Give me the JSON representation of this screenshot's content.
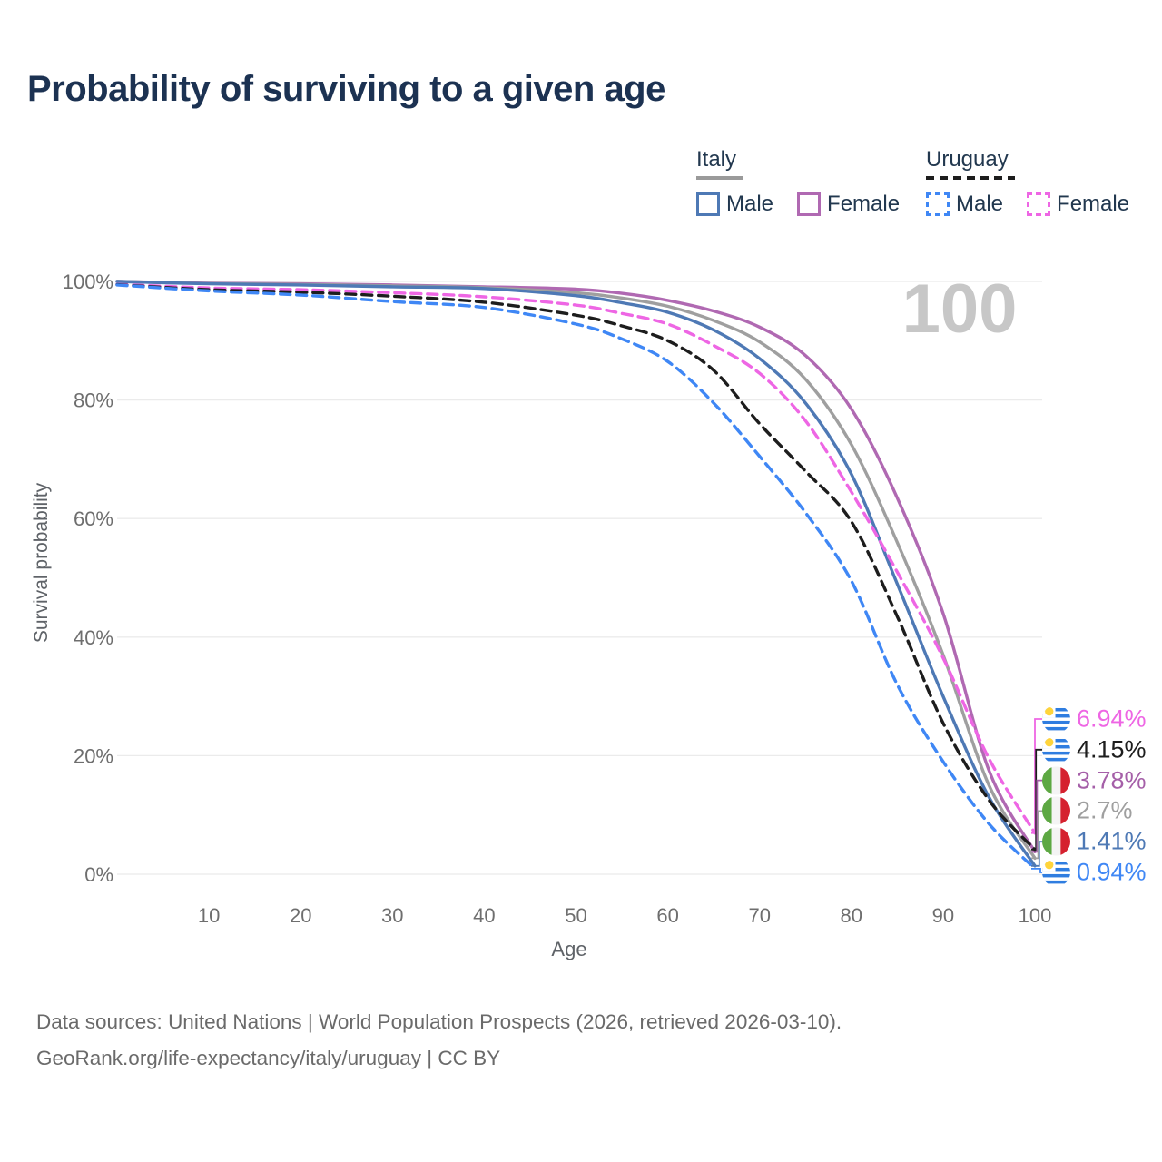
{
  "title": "Probability of surviving to a given age",
  "watermark": "100",
  "colors": {
    "title_text": "#1c3252",
    "legend_text": "#22384f",
    "tick_text": "#6e6e6e",
    "axis_title_text": "#5f6368",
    "gridline": "#ebebeb",
    "watermark": "#c7c7c7",
    "footer_text": "#6a6a6a"
  },
  "legend": {
    "groups": [
      {
        "name": "Italy",
        "line_style": "solid",
        "underline_color": "#9a9a9a",
        "items": [
          {
            "label": "Male",
            "color": "#4e79b5",
            "dashed": false
          },
          {
            "label": "Female",
            "color": "#b069b2",
            "dashed": false
          }
        ]
      },
      {
        "name": "Uruguay",
        "line_style": "dashed",
        "underline_color": "#1d1d1d",
        "items": [
          {
            "label": "Male",
            "color": "#3f87f5",
            "dashed": true
          },
          {
            "label": "Female",
            "color": "#ee66e4",
            "dashed": true
          }
        ]
      }
    ]
  },
  "axes": {
    "ylabel": "Survival probability",
    "xlabel": "Age",
    "yticks": [
      {
        "value": 100,
        "label": "100%"
      },
      {
        "value": 80,
        "label": "80%"
      },
      {
        "value": 60,
        "label": "60%"
      },
      {
        "value": 40,
        "label": "40%"
      },
      {
        "value": 20,
        "label": "20%"
      },
      {
        "value": 0,
        "label": "0%"
      }
    ],
    "xticks": [
      10,
      20,
      30,
      40,
      50,
      60,
      70,
      80,
      90,
      100
    ]
  },
  "chart_data": {
    "type": "line",
    "title": "Probability of surviving to a given age",
    "xlabel": "Age",
    "ylabel": "Survival probability",
    "x_range": [
      0,
      100
    ],
    "ylim": [
      0,
      100
    ],
    "grid": "horizontal",
    "legend_position": "top-right",
    "x": [
      0,
      10,
      20,
      30,
      40,
      50,
      55,
      60,
      65,
      70,
      75,
      80,
      85,
      90,
      95,
      100
    ],
    "series": [
      {
        "name": "Italy Female",
        "country": "Italy",
        "sex": "female",
        "color": "#b069b2",
        "dash": false,
        "values": [
          100,
          99.7,
          99.6,
          99.4,
          99.1,
          98.7,
          98.0,
          96.8,
          95.0,
          92.3,
          87.5,
          78.5,
          63.5,
          44.0,
          17.5,
          3.78
        ]
      },
      {
        "name": "Italy",
        "country": "Italy",
        "sex": "both",
        "color": "#9f9f9f",
        "dash": false,
        "values": [
          100,
          99.65,
          99.5,
          99.25,
          98.95,
          98.1,
          97.2,
          95.8,
          93.4,
          89.8,
          83.5,
          72.5,
          56.0,
          37.0,
          15.0,
          2.7
        ]
      },
      {
        "name": "Italy Male",
        "country": "Italy",
        "sex": "male",
        "color": "#4e79b5",
        "dash": false,
        "values": [
          100,
          99.6,
          99.4,
          99.1,
          98.8,
          97.6,
          96.4,
          94.8,
          91.8,
          87.0,
          79.5,
          67.5,
          49.0,
          30.0,
          13.0,
          1.41
        ]
      },
      {
        "name": "Uruguay Female",
        "country": "Uruguay",
        "sex": "female",
        "color": "#ee66e4",
        "dash": true,
        "values": [
          99.5,
          98.9,
          98.6,
          98.1,
          97.4,
          96.0,
          94.6,
          92.8,
          89.2,
          84.5,
          76.5,
          64.5,
          51.0,
          36.5,
          19.5,
          6.94
        ]
      },
      {
        "name": "Uruguay",
        "country": "Uruguay",
        "sex": "both",
        "color": "#1d1d1d",
        "dash": true,
        "values": [
          99.45,
          98.6,
          98.2,
          97.5,
          96.5,
          94.3,
          92.5,
          90.0,
          85.0,
          76.0,
          68.0,
          59.5,
          43.5,
          25.5,
          12.5,
          4.15
        ]
      },
      {
        "name": "Uruguay Male",
        "country": "Uruguay",
        "sex": "male",
        "color": "#3f87f5",
        "dash": true,
        "values": [
          99.4,
          98.4,
          97.7,
          96.6,
          95.6,
          92.8,
          90.3,
          86.5,
          79.5,
          70.5,
          61.0,
          49.5,
          32.0,
          19.0,
          8.5,
          0.94
        ]
      }
    ],
    "end_labels": [
      {
        "text": "6.94%",
        "value": 6.94,
        "flag": "uruguay",
        "color": "#ee66e4"
      },
      {
        "text": "4.15%",
        "value": 4.15,
        "flag": "uruguay",
        "color": "#1d1d1d"
      },
      {
        "text": "3.78%",
        "value": 3.78,
        "flag": "italy",
        "color": "#a55fa8"
      },
      {
        "text": "2.7%",
        "value": 2.7,
        "flag": "italy",
        "color": "#9f9f9f"
      },
      {
        "text": "1.41%",
        "value": 1.41,
        "flag": "italy",
        "color": "#4e79b5"
      },
      {
        "text": "0.94%",
        "value": 0.94,
        "flag": "uruguay",
        "color": "#3f87f5"
      }
    ]
  },
  "footer": {
    "line1": "Data sources: United Nations | World Population Prospects (2026, retrieved 2026-03-10).",
    "line2": "GeoRank.org/life-expectancy/italy/uruguay | CC BY"
  }
}
